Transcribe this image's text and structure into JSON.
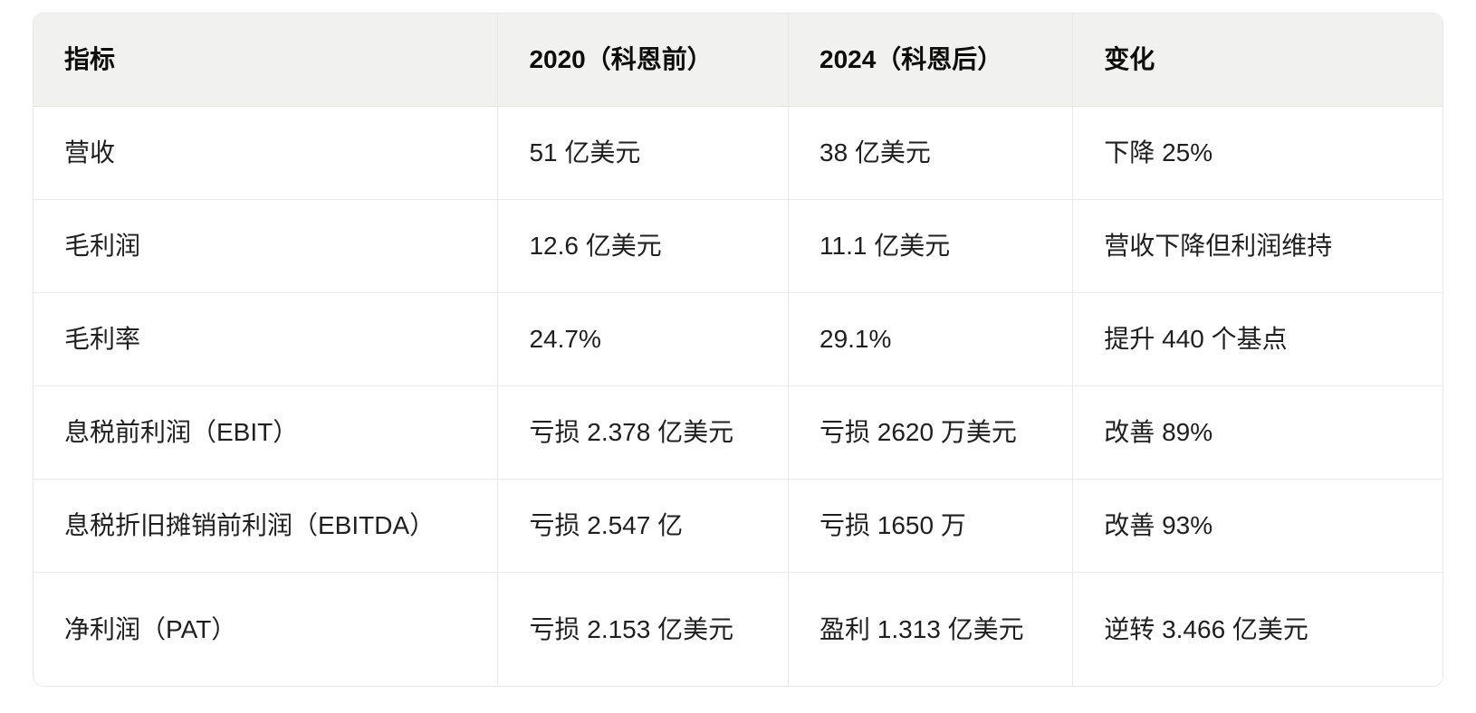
{
  "table": {
    "headers": [
      "指标",
      "2020（科恩前）",
      "2024（科恩后）",
      "变化"
    ],
    "rows": [
      [
        "营收",
        "51 亿美元",
        "38 亿美元",
        "下降 25%"
      ],
      [
        "毛利润",
        "12.6 亿美元",
        "11.1 亿美元",
        "营收下降但利润维持"
      ],
      [
        "毛利率",
        "24.7%",
        "29.1%",
        "提升 440 个基点"
      ],
      [
        "息税前利润（EBIT）",
        "亏损 2.378 亿美元",
        "亏损 2620 万美元",
        "改善 89%"
      ],
      [
        "息税折旧摊销前利润（EBITDA）",
        "亏损 2.547 亿",
        "亏损 1650 万",
        "改善 93%"
      ],
      [
        "净利润（PAT）",
        "亏损 2.153 亿美元",
        "盈利 1.313 亿美元",
        "逆转 3.466 亿美元"
      ]
    ]
  },
  "chart_data": {
    "type": "table",
    "columns": [
      "指标",
      "2020（科恩前）",
      "2024（科恩后）",
      "变化"
    ],
    "rows": [
      [
        "营收",
        "51 亿美元",
        "38 亿美元",
        "下降 25%"
      ],
      [
        "毛利润",
        "12.6 亿美元",
        "11.1 亿美元",
        "营收下降但利润维持"
      ],
      [
        "毛利率",
        "24.7%",
        "29.1%",
        "提升 440 个基点"
      ],
      [
        "息税前利润（EBIT）",
        "亏损 2.378 亿美元",
        "亏损 2620 万美元",
        "改善 89%"
      ],
      [
        "息税折旧摊销前利润（EBITDA）",
        "亏损 2.547 亿",
        "亏损 1650 万",
        "改善 93%"
      ],
      [
        "净利润（PAT）",
        "亏损 2.153 亿美元",
        "盈利 1.313 亿美元",
        "逆转 3.466 亿美元"
      ]
    ]
  },
  "colors": {
    "header_background": "#f1f1ef",
    "outer_border": "#e9e9e7",
    "column_divider": "#e8e8e6",
    "row_divider": "#ececea",
    "header_text": "#0d0d0d",
    "body_text": "#1f1f1f",
    "page_background": "#ffffff"
  }
}
